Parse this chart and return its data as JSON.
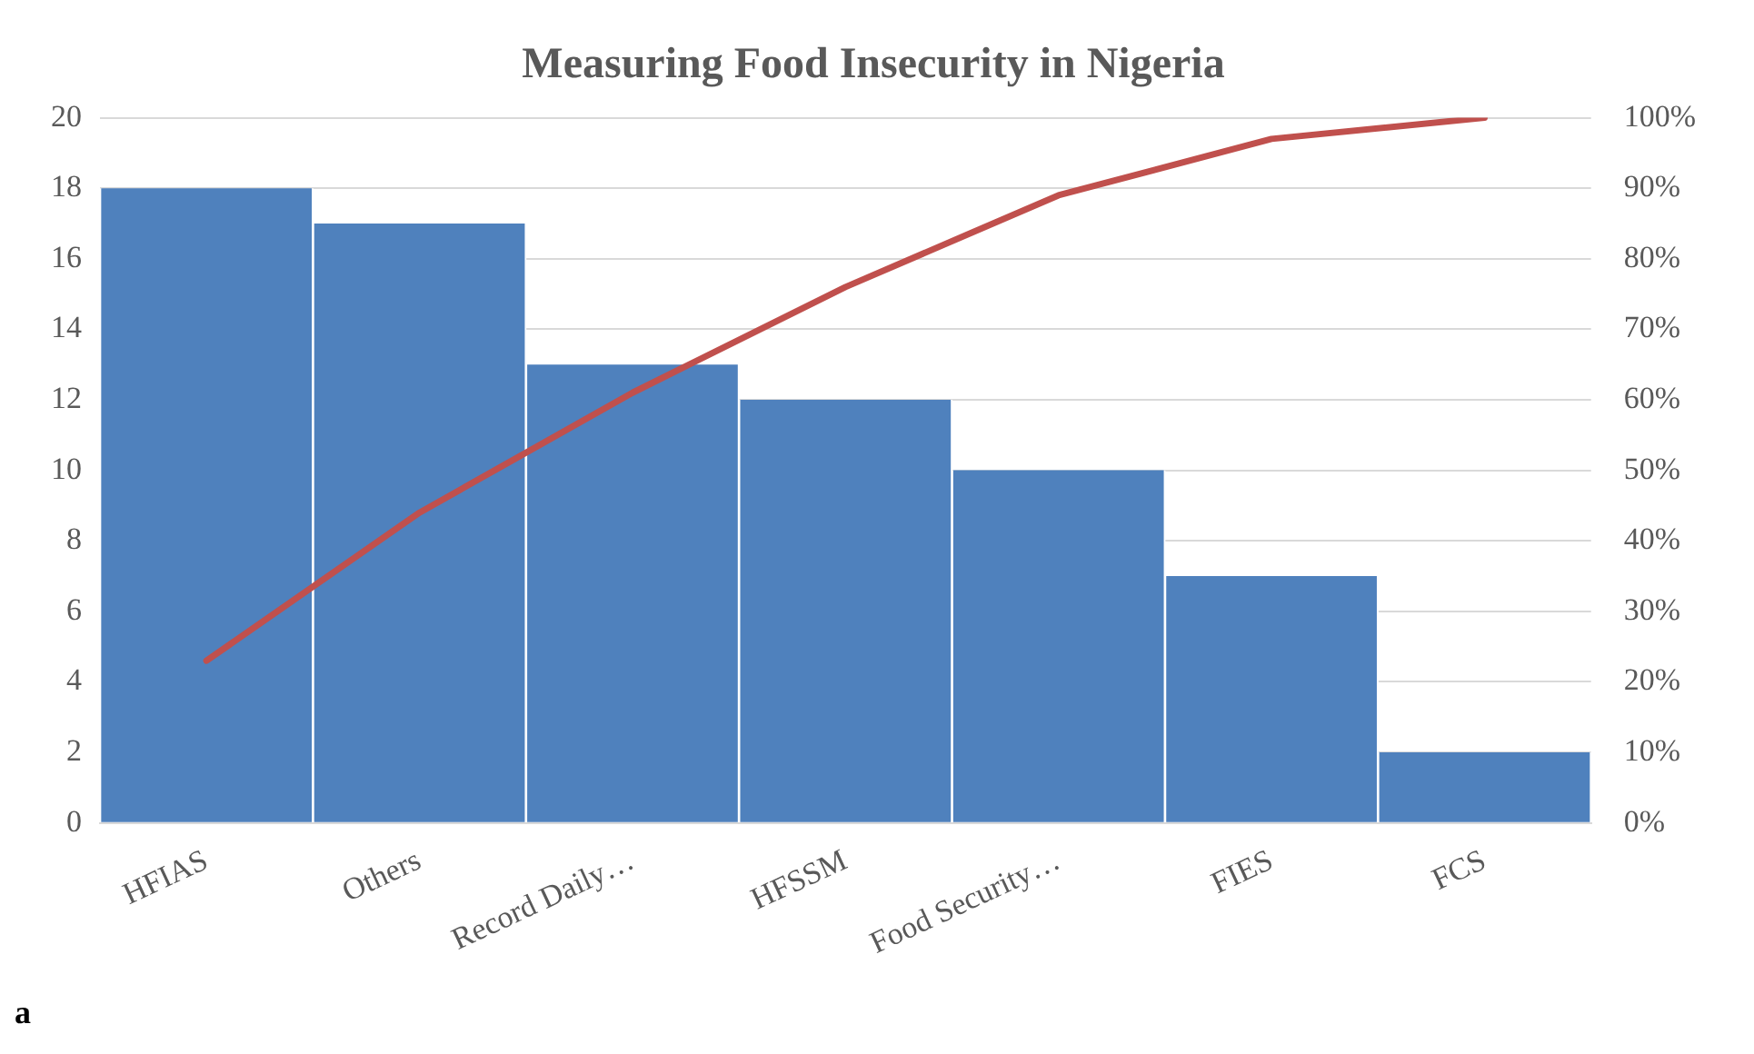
{
  "chart_data": {
    "type": "bar",
    "title": "Measuring Food Insecurity in Nigeria",
    "categories": [
      "HFIAS",
      "Others",
      "Record Daily…",
      "HFSSM",
      "Food Security…",
      "FIES",
      "FCS"
    ],
    "series": [
      {
        "color": "#4f81bd",
        "values": [
          18,
          17,
          13,
          12,
          10,
          7,
          2
        ]
      },
      {
        "type": "line",
        "axis": "y2",
        "color": "#c0504d",
        "values": [
          23,
          44,
          61,
          76,
          89,
          97,
          100
        ]
      }
    ],
    "ylim": [
      0,
      20
    ],
    "yticks": [
      0,
      2,
      4,
      6,
      8,
      10,
      12,
      14,
      16,
      18,
      20
    ],
    "y2lim": [
      0,
      100
    ],
    "y2ticks": [
      {
        "value": 0,
        "label": "0%"
      },
      {
        "value": 10,
        "label": "10%"
      },
      {
        "value": 20,
        "label": "20%"
      },
      {
        "value": 30,
        "label": "30%"
      },
      {
        "value": 40,
        "label": "40%"
      },
      {
        "value": 50,
        "label": "50%"
      },
      {
        "value": 60,
        "label": "60%"
      },
      {
        "value": 70,
        "label": "70%"
      },
      {
        "value": 80,
        "label": "80%"
      },
      {
        "value": 90,
        "label": "90%"
      },
      {
        "value": 100,
        "label": "100%"
      }
    ],
    "grid": "y",
    "legend": false,
    "marker": "none",
    "line_style": "solid",
    "annotations": [
      "a"
    ]
  }
}
